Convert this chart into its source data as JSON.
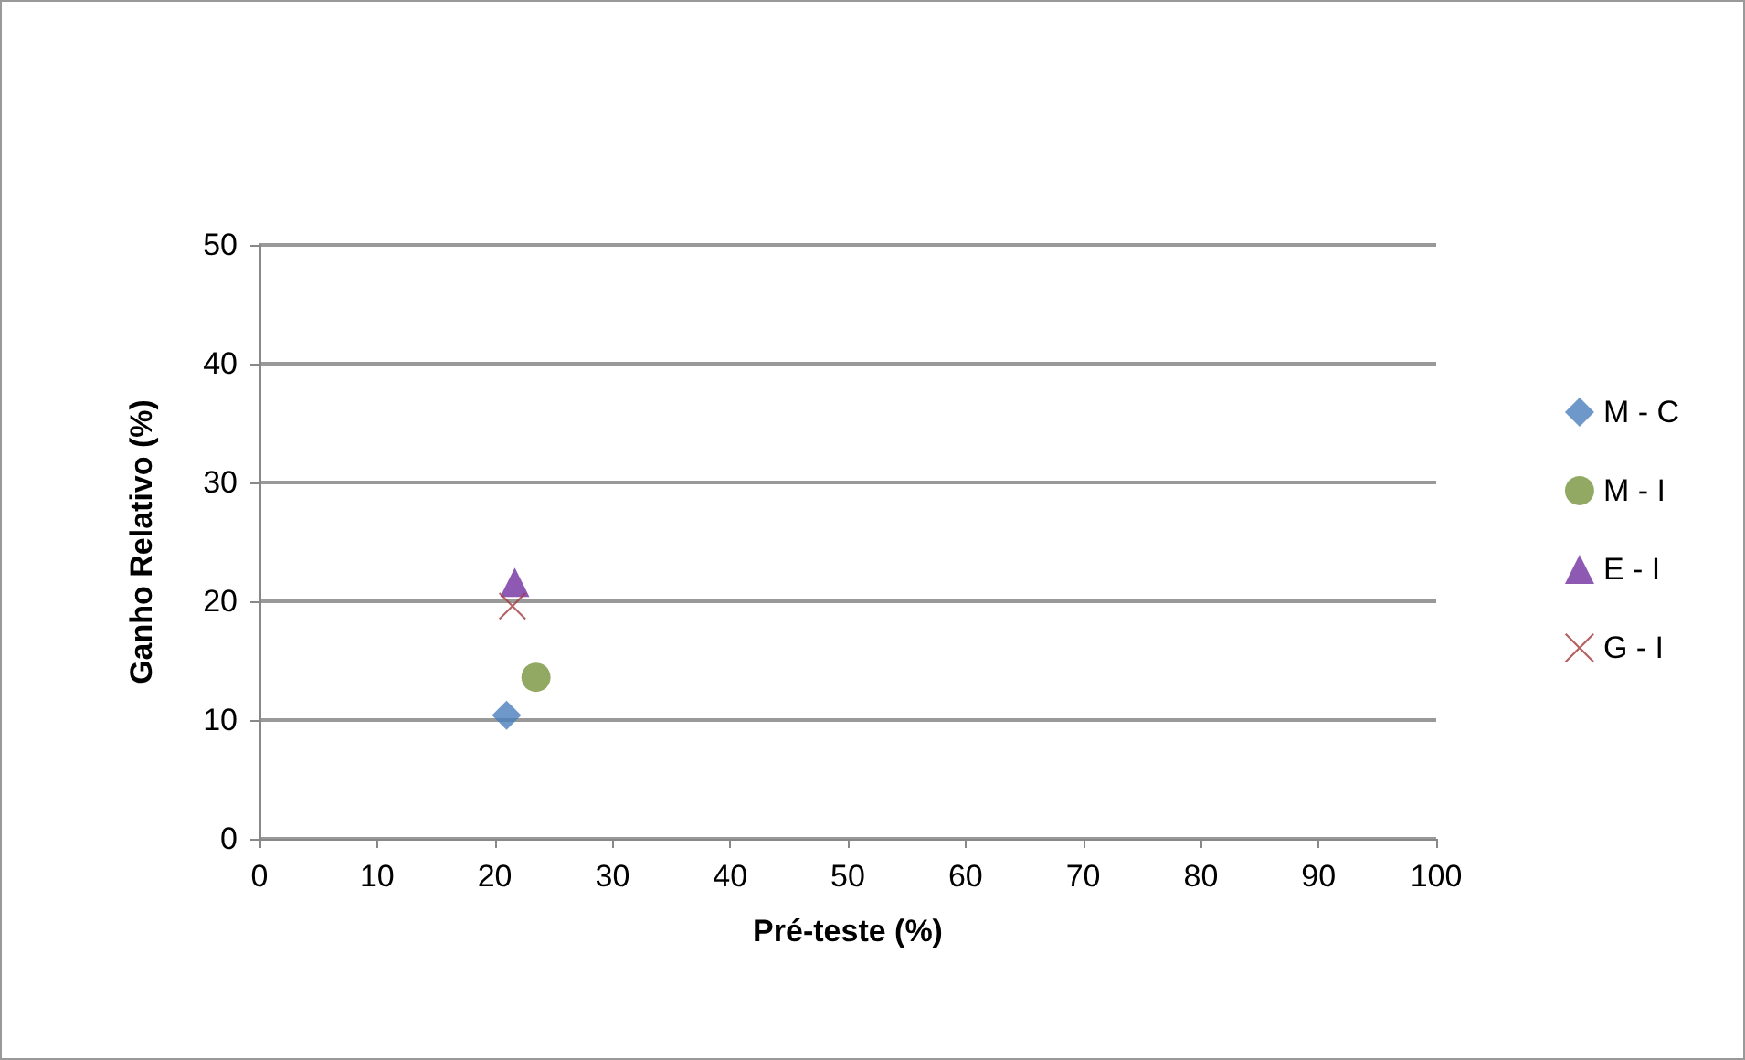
{
  "chart_data": {
    "type": "scatter",
    "xlabel": "Pré-teste (%)",
    "ylabel": "Ganho Relativo (%)",
    "xlim": [
      0,
      100
    ],
    "xticks": [
      0,
      10,
      20,
      30,
      40,
      50,
      60,
      70,
      80,
      90,
      100
    ],
    "ylim": [
      0,
      50
    ],
    "yticks": [
      0,
      10,
      20,
      30,
      40,
      50
    ],
    "grid": "y",
    "legend": "right",
    "series": [
      {
        "name": "M - C",
        "color": "#4a7ebb",
        "marker": "diamond",
        "x": [
          21.0
        ],
        "values": [
          10.4
        ]
      },
      {
        "name": "M - I",
        "color": "#77933c",
        "marker": "circle",
        "x": [
          23.5
        ],
        "values": [
          13.6
        ]
      },
      {
        "name": "E - I",
        "color": "#7030a0",
        "marker": "triangle",
        "x": [
          21.7
        ],
        "values": [
          21.6
        ]
      },
      {
        "name": "G - I",
        "color": "#a33b3b",
        "marker": "cross",
        "x": [
          21.5
        ],
        "values": [
          19.6
        ]
      }
    ]
  }
}
